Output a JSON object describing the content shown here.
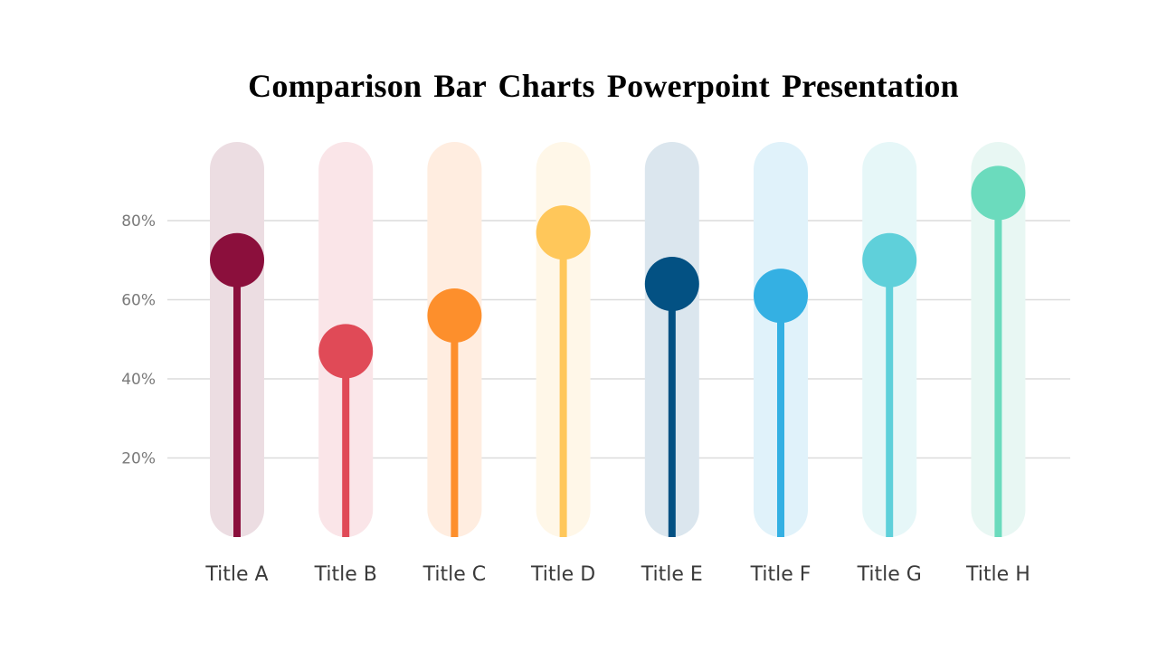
{
  "slide": {
    "title": "Comparison Bar Charts Powerpoint Presentation"
  },
  "chart_data": {
    "type": "bar",
    "style": "lollipop",
    "title": "Comparison Bar Charts Powerpoint Presentation",
    "categories": [
      "Title A",
      "Title B",
      "Title C",
      "Title D",
      "Title E",
      "Title F",
      "Title G",
      "Title H"
    ],
    "values": [
      70,
      47,
      56,
      77,
      64,
      61,
      70,
      87
    ],
    "ylim": [
      0,
      100
    ],
    "yticks": [
      20,
      40,
      60,
      80
    ],
    "ytick_labels": [
      "20%",
      "40%",
      "60%",
      "80%"
    ],
    "grid": true,
    "colors": [
      "#8b0f3c",
      "#e04a57",
      "#fd8f2c",
      "#ffc75a",
      "#035183",
      "#34b0e3",
      "#5fd0da",
      "#6bdbbd"
    ],
    "track_colors": [
      "#ecdde2",
      "#fae5e8",
      "#ffede0",
      "#fff7e8",
      "#dbe6ee",
      "#e0f2fa",
      "#e6f7f8",
      "#e8f7f3"
    ]
  }
}
